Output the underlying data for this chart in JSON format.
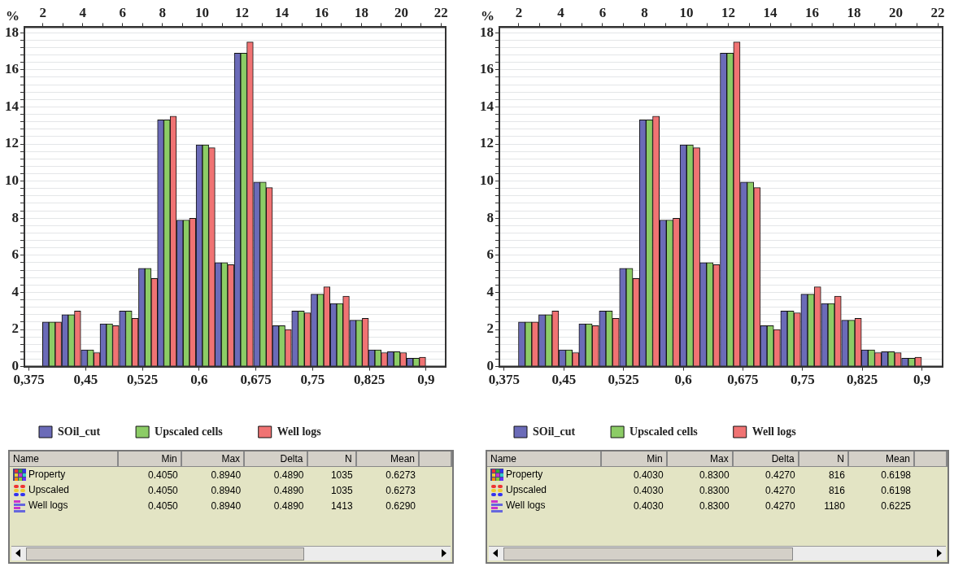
{
  "chart_data": [
    {
      "type": "histogram",
      "ylabel": "%",
      "bins": [
        0.393,
        0.418,
        0.444,
        0.469,
        0.494,
        0.52,
        0.545,
        0.57,
        0.596,
        0.621,
        0.646,
        0.672,
        0.697,
        0.722,
        0.748,
        0.773,
        0.799,
        0.824,
        0.849,
        0.874,
        0.9
      ],
      "series": [
        {
          "name": "SOil_cut",
          "color": "#6b6bb8",
          "values": [
            2.4,
            2.8,
            0.9,
            2.3,
            3.0,
            5.3,
            13.3,
            7.9,
            11.95,
            5.6,
            16.9,
            9.95,
            2.2,
            3.0,
            3.9,
            3.4,
            2.5,
            0.9,
            0.8,
            0.45
          ]
        },
        {
          "name": "Upscaled cells",
          "color": "#8ccc66",
          "values": [
            2.4,
            2.8,
            0.9,
            2.3,
            3.0,
            5.3,
            13.3,
            7.9,
            11.95,
            5.6,
            16.9,
            9.95,
            2.2,
            3.0,
            3.9,
            3.4,
            2.5,
            0.9,
            0.8,
            0.45
          ]
        },
        {
          "name": "Well logs",
          "color": "#f07373",
          "values": [
            2.4,
            3.0,
            0.75,
            2.2,
            2.6,
            4.75,
            13.5,
            8.0,
            11.8,
            5.5,
            17.5,
            9.65,
            2.0,
            2.9,
            4.3,
            3.8,
            2.6,
            0.75,
            0.75,
            0.5
          ]
        }
      ],
      "xlim": [
        0.369,
        0.926
      ],
      "xticks": [
        {
          "value": 0.375,
          "label": "0,375"
        },
        {
          "value": 0.45,
          "label": "0,45"
        },
        {
          "value": 0.525,
          "label": "0,525"
        },
        {
          "value": 0.6,
          "label": "0,6"
        },
        {
          "value": 0.675,
          "label": "0,675"
        },
        {
          "value": 0.75,
          "label": "0,75"
        },
        {
          "value": 0.825,
          "label": "0,825"
        },
        {
          "value": 0.9,
          "label": "0,9"
        }
      ],
      "x2lim": [
        1.07,
        22.23
      ],
      "x2ticks": [
        2,
        {
          "value": 3,
          "label": null
        },
        4,
        {
          "value": 5,
          "label": null
        },
        6,
        {
          "value": 7,
          "label": null
        },
        8,
        {
          "value": 9,
          "label": null
        },
        10,
        {
          "value": 11,
          "label": null
        },
        12,
        {
          "value": 13,
          "label": null
        },
        14,
        {
          "value": 15,
          "label": null
        },
        16,
        {
          "value": 17,
          "label": null
        },
        18,
        {
          "value": 19,
          "label": null
        },
        20,
        {
          "value": 21,
          "label": null
        },
        22
      ],
      "ylim": [
        0,
        18.3
      ],
      "yticks": [
        0,
        {
          "value": 0.4,
          "label": null
        },
        {
          "value": 0.8,
          "label": null
        },
        {
          "value": 1.2,
          "label": null
        },
        {
          "value": 1.6,
          "label": null
        },
        2,
        {
          "value": 2.4,
          "label": null
        },
        {
          "value": 2.8,
          "label": null
        },
        {
          "value": 3.2,
          "label": null
        },
        {
          "value": 3.6,
          "label": null
        },
        4,
        {
          "value": 4.4,
          "label": null
        },
        {
          "value": 4.8,
          "label": null
        },
        {
          "value": 5.2,
          "label": null
        },
        {
          "value": 5.6,
          "label": null
        },
        6,
        {
          "value": 6.4,
          "label": null
        },
        {
          "value": 6.8,
          "label": null
        },
        {
          "value": 7.2,
          "label": null
        },
        {
          "value": 7.6,
          "label": null
        },
        8,
        {
          "value": 8.4,
          "label": null
        },
        {
          "value": 8.8,
          "label": null
        },
        {
          "value": 9.2,
          "label": null
        },
        {
          "value": 9.6,
          "label": null
        },
        10,
        {
          "value": 10.4,
          "label": null
        },
        {
          "value": 10.8,
          "label": null
        },
        {
          "value": 11.2,
          "label": null
        },
        {
          "value": 11.6,
          "label": null
        },
        12,
        {
          "value": 12.4,
          "label": null
        },
        {
          "value": 12.8,
          "label": null
        },
        {
          "value": 13.2,
          "label": null
        },
        {
          "value": 13.6,
          "label": null
        },
        14,
        {
          "value": 14.4,
          "label": null
        },
        {
          "value": 14.8,
          "label": null
        },
        {
          "value": 15.2,
          "label": null
        },
        {
          "value": 15.6,
          "label": null
        },
        16,
        {
          "value": 16.4,
          "label": null
        },
        {
          "value": 16.8,
          "label": null
        },
        {
          "value": 17.2,
          "label": null
        },
        {
          "value": 17.6,
          "label": null
        },
        18
      ],
      "grid": "y",
      "legend": "bottom"
    },
    {
      "type": "histogram",
      "ylabel": "%",
      "bins": [
        0.393,
        0.418,
        0.444,
        0.469,
        0.494,
        0.52,
        0.545,
        0.57,
        0.596,
        0.621,
        0.646,
        0.672,
        0.697,
        0.722,
        0.748,
        0.773,
        0.799,
        0.824,
        0.849,
        0.874,
        0.9
      ],
      "series": [
        {
          "name": "SOil_cut",
          "color": "#6b6bb8",
          "values": [
            2.4,
            2.8,
            0.9,
            2.3,
            3.0,
            5.3,
            13.3,
            7.9,
            11.95,
            5.6,
            16.9,
            9.95,
            2.2,
            3.0,
            3.9,
            3.4,
            2.5,
            0.9,
            0.8,
            0.45
          ]
        },
        {
          "name": "Upscaled cells",
          "color": "#8ccc66",
          "values": [
            2.4,
            2.8,
            0.9,
            2.3,
            3.0,
            5.3,
            13.3,
            7.9,
            11.95,
            5.6,
            16.9,
            9.95,
            2.2,
            3.0,
            3.9,
            3.4,
            2.5,
            0.9,
            0.8,
            0.45
          ]
        },
        {
          "name": "Well logs",
          "color": "#f07373",
          "values": [
            2.4,
            3.0,
            0.75,
            2.2,
            2.6,
            4.75,
            13.5,
            8.0,
            11.8,
            5.5,
            17.5,
            9.65,
            2.0,
            2.9,
            4.3,
            3.8,
            2.6,
            0.75,
            0.75,
            0.5
          ]
        }
      ],
      "xlim": [
        0.369,
        0.926
      ],
      "xticks": [
        {
          "value": 0.375,
          "label": "0,375"
        },
        {
          "value": 0.45,
          "label": "0,45"
        },
        {
          "value": 0.525,
          "label": "0,525"
        },
        {
          "value": 0.6,
          "label": "0,6"
        },
        {
          "value": 0.675,
          "label": "0,675"
        },
        {
          "value": 0.75,
          "label": "0,75"
        },
        {
          "value": 0.825,
          "label": "0,825"
        },
        {
          "value": 0.9,
          "label": "0,9"
        }
      ],
      "x2lim": [
        1.07,
        22.23
      ],
      "x2ticks": [
        2,
        {
          "value": 3,
          "label": null
        },
        4,
        {
          "value": 5,
          "label": null
        },
        6,
        {
          "value": 7,
          "label": null
        },
        8,
        {
          "value": 9,
          "label": null
        },
        10,
        {
          "value": 11,
          "label": null
        },
        12,
        {
          "value": 13,
          "label": null
        },
        14,
        {
          "value": 15,
          "label": null
        },
        16,
        {
          "value": 17,
          "label": null
        },
        18,
        {
          "value": 19,
          "label": null
        },
        20,
        {
          "value": 21,
          "label": null
        },
        22
      ],
      "ylim": [
        0,
        18.3
      ],
      "yticks": [
        0,
        {
          "value": 0.4,
          "label": null
        },
        {
          "value": 0.8,
          "label": null
        },
        {
          "value": 1.2,
          "label": null
        },
        {
          "value": 1.6,
          "label": null
        },
        2,
        {
          "value": 2.4,
          "label": null
        },
        {
          "value": 2.8,
          "label": null
        },
        {
          "value": 3.2,
          "label": null
        },
        {
          "value": 3.6,
          "label": null
        },
        4,
        {
          "value": 4.4,
          "label": null
        },
        {
          "value": 4.8,
          "label": null
        },
        {
          "value": 5.2,
          "label": null
        },
        {
          "value": 5.6,
          "label": null
        },
        6,
        {
          "value": 6.4,
          "label": null
        },
        {
          "value": 6.8,
          "label": null
        },
        {
          "value": 7.2,
          "label": null
        },
        {
          "value": 7.6,
          "label": null
        },
        8,
        {
          "value": 8.4,
          "label": null
        },
        {
          "value": 8.8,
          "label": null
        },
        {
          "value": 9.2,
          "label": null
        },
        {
          "value": 9.6,
          "label": null
        },
        10,
        {
          "value": 10.4,
          "label": null
        },
        {
          "value": 10.8,
          "label": null
        },
        {
          "value": 11.2,
          "label": null
        },
        {
          "value": 11.6,
          "label": null
        },
        12,
        {
          "value": 12.4,
          "label": null
        },
        {
          "value": 12.8,
          "label": null
        },
        {
          "value": 13.2,
          "label": null
        },
        {
          "value": 13.6,
          "label": null
        },
        14,
        {
          "value": 14.4,
          "label": null
        },
        {
          "value": 14.8,
          "label": null
        },
        {
          "value": 15.2,
          "label": null
        },
        {
          "value": 15.6,
          "label": null
        },
        16,
        {
          "value": 16.4,
          "label": null
        },
        {
          "value": 16.8,
          "label": null
        },
        {
          "value": 17.2,
          "label": null
        },
        {
          "value": 17.6,
          "label": null
        },
        18
      ],
      "grid": "y",
      "legend": "bottom"
    },
    {
      "type": "other",
      "categories": [
        "Name",
        "Min",
        "Max",
        "Delta",
        "N",
        "Mean"
      ],
      "y_categories": [
        "Property",
        "Upscaled",
        "Well logs"
      ],
      "cell_labels": [
        [
          "0.4050",
          "0.8940",
          "0.4890",
          "1035",
          "0.6273"
        ],
        [
          "0.4050",
          "0.8940",
          "0.4890",
          "1035",
          "0.6273"
        ],
        [
          "0.4050",
          "0.8940",
          "0.4890",
          "1413",
          "0.6290"
        ]
      ]
    },
    {
      "type": "other",
      "categories": [
        "Name",
        "Min",
        "Max",
        "Delta",
        "N",
        "Mean"
      ],
      "y_categories": [
        "Property",
        "Upscaled",
        "Well logs"
      ],
      "cell_labels": [
        [
          "0.4030",
          "0.8300",
          "0.4270",
          "816",
          "0.6198"
        ],
        [
          "0.4030",
          "0.8300",
          "0.4270",
          "816",
          "0.6198"
        ],
        [
          "0.4030",
          "0.8300",
          "0.4270",
          "1180",
          "0.6225"
        ]
      ]
    }
  ]
}
